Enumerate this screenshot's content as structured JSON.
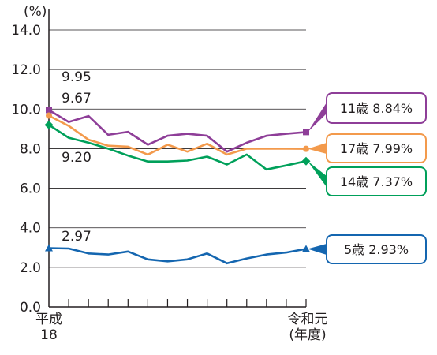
{
  "chart_data": {
    "type": "line",
    "ylabel": "(%)",
    "ylim": [
      0,
      14
    ],
    "yticks": [
      "0.0",
      "2.0",
      "4.0",
      "6.0",
      "8.0",
      "10.0",
      "12.0",
      "14.0"
    ],
    "x_start_label": [
      "平成",
      "18"
    ],
    "x_end_label": [
      "令和元",
      "(年度)"
    ],
    "grid": true,
    "points": 14,
    "series": [
      {
        "name": "11歳",
        "legend": "11歳  8.84%",
        "color": "#8e3e98",
        "marker": "square",
        "values": [
          9.95,
          9.35,
          9.65,
          8.7,
          8.85,
          8.2,
          8.65,
          8.75,
          8.65,
          7.85,
          8.3,
          8.65,
          8.75,
          8.84
        ]
      },
      {
        "name": "17歳",
        "legend": "17歳  7.99%",
        "color": "#f39a4c",
        "marker": "circle",
        "values": [
          9.67,
          9.15,
          8.45,
          8.15,
          8.1,
          7.7,
          8.2,
          7.85,
          8.25,
          7.7,
          8.0,
          8.0,
          8.0,
          7.99
        ]
      },
      {
        "name": "14歳",
        "legend": "14歳  7.37%",
        "color": "#00a05a",
        "marker": "diamond",
        "values": [
          9.2,
          8.55,
          8.3,
          8.0,
          7.65,
          7.35,
          7.35,
          7.4,
          7.6,
          7.2,
          7.7,
          6.95,
          7.15,
          7.37
        ]
      },
      {
        "name": "5歳",
        "legend": "5歳  2.93%",
        "color": "#1466b0",
        "marker": "triangle",
        "values": [
          2.97,
          2.95,
          2.7,
          2.65,
          2.8,
          2.4,
          2.3,
          2.4,
          2.7,
          2.2,
          2.45,
          2.65,
          2.75,
          2.93
        ]
      }
    ],
    "annotations": [
      "9.95",
      "9.67",
      "9.20",
      "2.97"
    ]
  }
}
